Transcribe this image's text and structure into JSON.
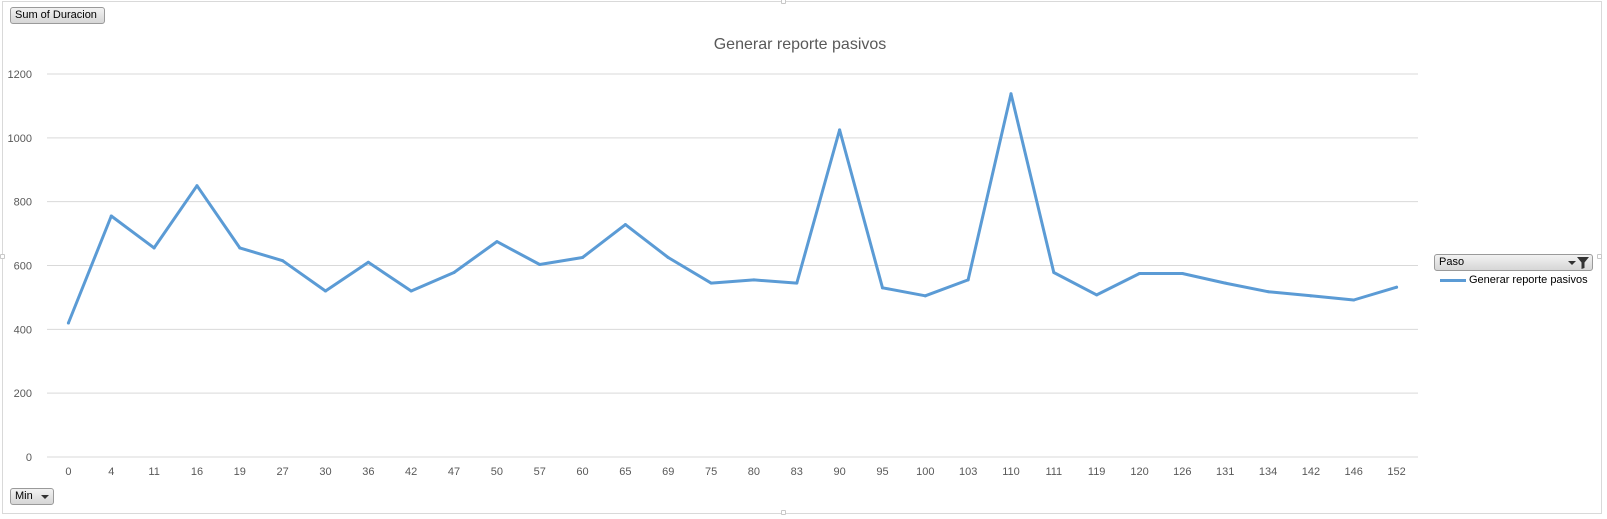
{
  "buttons": {
    "value_field": "Sum of Duracion",
    "axis_field": "Min",
    "legend_field": "Paso"
  },
  "colors": {
    "series": "#5b9bd5",
    "gridline": "#d9d9d9",
    "axis_text": "#595959"
  },
  "chart_data": {
    "type": "line",
    "title": "Generar reporte pasivos",
    "xlabel": "",
    "ylabel": "",
    "ylim": [
      0,
      1200
    ],
    "yticks": [
      0,
      200,
      400,
      600,
      800,
      1000,
      1200
    ],
    "grid": true,
    "legend": "right",
    "categories": [
      "0",
      "4",
      "11",
      "16",
      "19",
      "27",
      "30",
      "36",
      "42",
      "47",
      "50",
      "57",
      "60",
      "65",
      "69",
      "75",
      "80",
      "83",
      "90",
      "95",
      "100",
      "103",
      "110",
      "111",
      "119",
      "120",
      "126",
      "131",
      "134",
      "142",
      "146",
      "152"
    ],
    "series": [
      {
        "name": "Generar reporte pasivos",
        "values": [
          420,
          755,
          655,
          850,
          655,
          615,
          520,
          610,
          520,
          578,
          675,
          603,
          625,
          728,
          625,
          545,
          555,
          545,
          1025,
          530,
          505,
          555,
          1138,
          578,
          508,
          575,
          575,
          545,
          518,
          505,
          492,
          532
        ]
      }
    ]
  }
}
